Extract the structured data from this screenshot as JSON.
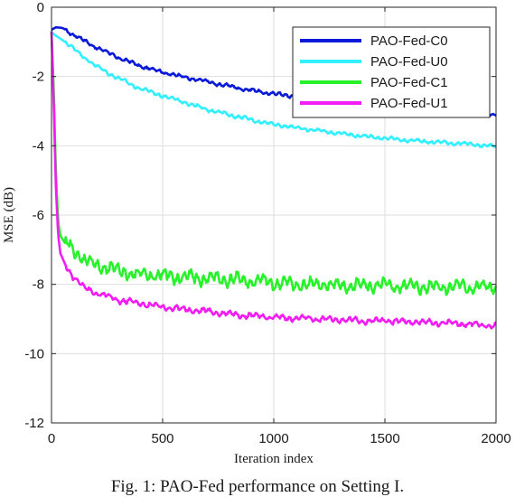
{
  "caption": "Fig. 1: PAO-Fed performance on Setting I.",
  "chart_data": {
    "type": "line",
    "xlabel": "Iteration index",
    "ylabel": "MSE (dB)",
    "xlim": [
      0,
      2000
    ],
    "ylim": [
      -12,
      0
    ],
    "xticks": [
      0,
      500,
      1000,
      1500,
      2000
    ],
    "yticks": [
      0,
      -2,
      -4,
      -6,
      -8,
      -10,
      -12
    ],
    "grid": true,
    "legend_position": "top-right",
    "series": [
      {
        "name": "PAO-Fed-C0",
        "color": "#0a1ad6",
        "noise": 0.03,
        "points": [
          [
            0,
            -0.65
          ],
          [
            20,
            -0.58
          ],
          [
            50,
            -0.6
          ],
          [
            100,
            -0.8
          ],
          [
            200,
            -1.15
          ],
          [
            300,
            -1.45
          ],
          [
            400,
            -1.7
          ],
          [
            500,
            -1.87
          ],
          [
            600,
            -2.02
          ],
          [
            700,
            -2.15
          ],
          [
            800,
            -2.28
          ],
          [
            900,
            -2.4
          ],
          [
            1000,
            -2.5
          ],
          [
            1100,
            -2.57
          ],
          [
            1200,
            -2.65
          ],
          [
            1300,
            -2.72
          ],
          [
            1400,
            -2.78
          ],
          [
            1500,
            -2.84
          ],
          [
            1600,
            -2.9
          ],
          [
            1700,
            -2.95
          ],
          [
            1800,
            -3.0
          ],
          [
            1900,
            -3.05
          ],
          [
            2000,
            -3.12
          ]
        ]
      },
      {
        "name": "PAO-Fed-U0",
        "color": "#33efff",
        "noise": 0.03,
        "points": [
          [
            0,
            -0.7
          ],
          [
            10,
            -0.78
          ],
          [
            50,
            -0.95
          ],
          [
            100,
            -1.2
          ],
          [
            200,
            -1.7
          ],
          [
            300,
            -2.05
          ],
          [
            400,
            -2.35
          ],
          [
            500,
            -2.55
          ],
          [
            600,
            -2.75
          ],
          [
            700,
            -2.95
          ],
          [
            800,
            -3.1
          ],
          [
            900,
            -3.25
          ],
          [
            1000,
            -3.38
          ],
          [
            1100,
            -3.48
          ],
          [
            1200,
            -3.56
          ],
          [
            1300,
            -3.64
          ],
          [
            1400,
            -3.72
          ],
          [
            1500,
            -3.78
          ],
          [
            1600,
            -3.84
          ],
          [
            1700,
            -3.88
          ],
          [
            1800,
            -3.92
          ],
          [
            1900,
            -3.96
          ],
          [
            2000,
            -4.02
          ]
        ]
      },
      {
        "name": "PAO-Fed-C1",
        "color": "#27f22a",
        "noise": 0.11,
        "points": [
          [
            0,
            -0.7
          ],
          [
            10,
            -2.4
          ],
          [
            20,
            -4.8
          ],
          [
            30,
            -6.2
          ],
          [
            40,
            -6.6
          ],
          [
            60,
            -6.8
          ],
          [
            100,
            -7.0
          ],
          [
            150,
            -7.3
          ],
          [
            200,
            -7.45
          ],
          [
            300,
            -7.6
          ],
          [
            400,
            -7.72
          ],
          [
            500,
            -7.75
          ],
          [
            600,
            -7.8
          ],
          [
            700,
            -7.82
          ],
          [
            800,
            -7.85
          ],
          [
            900,
            -7.9
          ],
          [
            1000,
            -7.95
          ],
          [
            1100,
            -8.0
          ],
          [
            1200,
            -8.0
          ],
          [
            1300,
            -8.05
          ],
          [
            1400,
            -8.02
          ],
          [
            1500,
            -8.05
          ],
          [
            1600,
            -8.05
          ],
          [
            1700,
            -8.07
          ],
          [
            1800,
            -8.05
          ],
          [
            1900,
            -8.08
          ],
          [
            2000,
            -8.1
          ]
        ]
      },
      {
        "name": "PAO-Fed-U1",
        "color": "#f21df2",
        "noise": 0.05,
        "points": [
          [
            0,
            -0.7
          ],
          [
            10,
            -2.8
          ],
          [
            20,
            -5.2
          ],
          [
            30,
            -6.6
          ],
          [
            40,
            -7.1
          ],
          [
            60,
            -7.4
          ],
          [
            100,
            -7.8
          ],
          [
            150,
            -8.1
          ],
          [
            200,
            -8.25
          ],
          [
            300,
            -8.45
          ],
          [
            400,
            -8.55
          ],
          [
            500,
            -8.65
          ],
          [
            600,
            -8.72
          ],
          [
            700,
            -8.78
          ],
          [
            800,
            -8.85
          ],
          [
            900,
            -8.9
          ],
          [
            1000,
            -8.95
          ],
          [
            1100,
            -8.98
          ],
          [
            1200,
            -9.0
          ],
          [
            1300,
            -9.02
          ],
          [
            1400,
            -9.05
          ],
          [
            1500,
            -9.05
          ],
          [
            1600,
            -9.08
          ],
          [
            1700,
            -9.1
          ],
          [
            1800,
            -9.12
          ],
          [
            1900,
            -9.15
          ],
          [
            2000,
            -9.2
          ]
        ]
      }
    ]
  }
}
